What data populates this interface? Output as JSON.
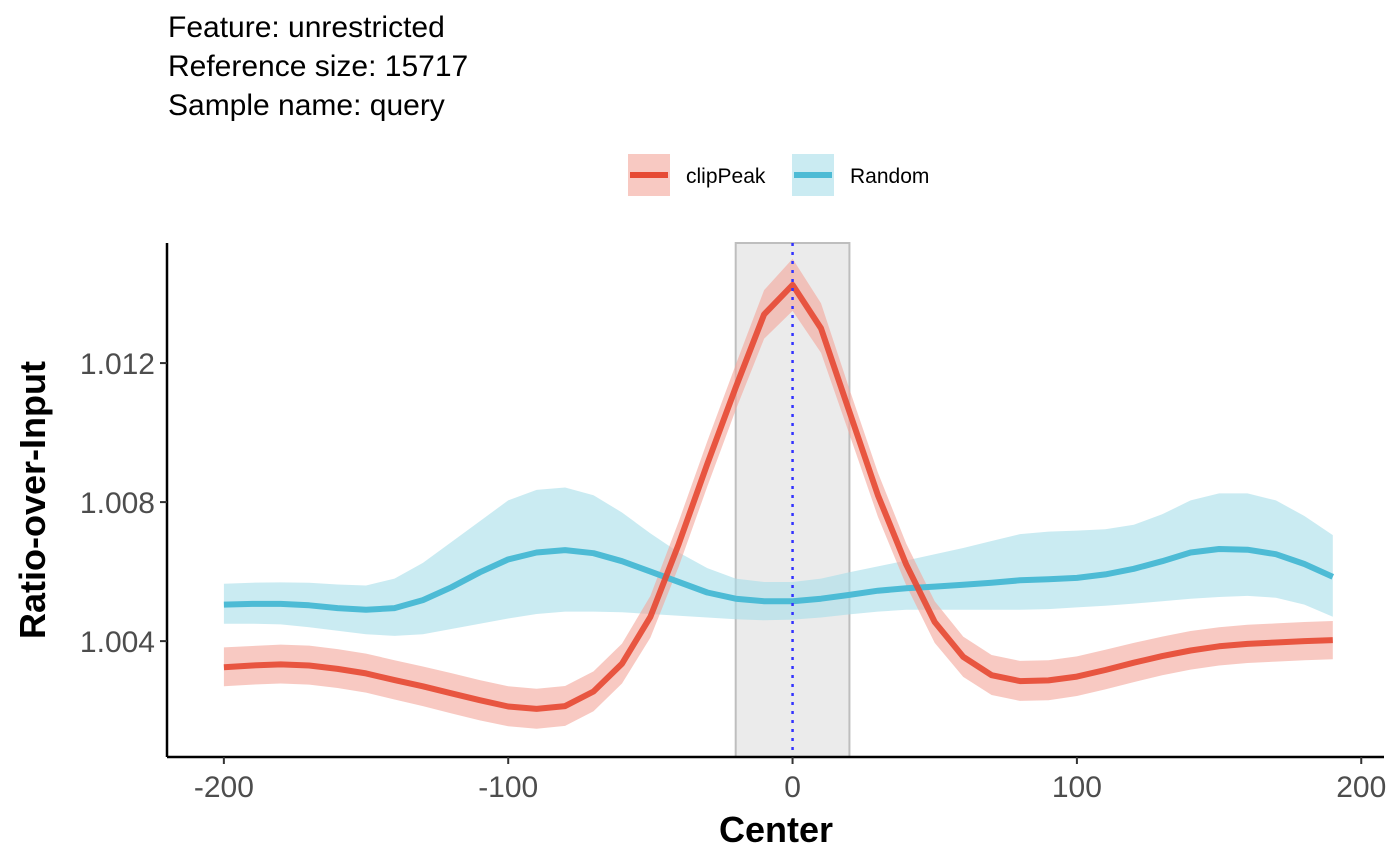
{
  "title_lines": [
    "Feature: unrestricted",
    "Reference size: 15717",
    "Sample name: query"
  ],
  "chart_data": {
    "type": "line",
    "xlabel": "Center",
    "ylabel": "Ratio-over-Input",
    "xlim": [
      -220,
      208
    ],
    "ylim": [
      1.000666,
      1.015455
    ],
    "x_ticks": [
      -200,
      -100,
      0,
      100,
      200
    ],
    "x_tick_labels": [
      "-200",
      "-100",
      "0",
      "100",
      "200"
    ],
    "y_ticks": [
      1.004,
      1.008,
      1.012
    ],
    "y_tick_labels": [
      "1.004",
      "1.008",
      "1.012"
    ],
    "grid": false,
    "legend_position": "top",
    "highlight_region": [
      -20,
      20
    ],
    "reference_line_x": 0,
    "colors": {
      "clipPeak_line": "#E64B35",
      "clipPeak_band": "#F4A59A",
      "Random_line": "#4DBBD5",
      "Random_band": "#A6DDEA",
      "highlight_fill": "#EBEBEB",
      "highlight_stroke": "#BEBEBE",
      "reference_line": "#3333FF",
      "axis": "#000000"
    },
    "x": [
      -200,
      -190,
      -180,
      -170,
      -160,
      -150,
      -140,
      -130,
      -120,
      -110,
      -100,
      -90,
      -80,
      -70,
      -60,
      -50,
      -40,
      -30,
      -20,
      -10,
      0,
      10,
      20,
      30,
      40,
      50,
      60,
      70,
      80,
      90,
      100,
      110,
      120,
      130,
      140,
      150,
      160,
      170,
      180,
      190
    ],
    "series": [
      {
        "name": "clipPeak",
        "values": [
          1.00325,
          1.0033,
          1.00333,
          1.0033,
          1.0032,
          1.00307,
          1.00288,
          1.0027,
          1.0025,
          1.0023,
          1.00212,
          1.00205,
          1.00213,
          1.00255,
          1.00335,
          1.0047,
          1.0068,
          1.0091,
          1.0113,
          1.0134,
          1.01425,
          1.013,
          1.0106,
          1.0082,
          1.0062,
          1.00455,
          1.00355,
          1.00302,
          1.00285,
          1.00287,
          1.00298,
          1.00317,
          1.00338,
          1.00357,
          1.00373,
          1.00385,
          1.00392,
          1.00396,
          1.004,
          1.00403
        ],
        "lower": [
          1.0027,
          1.00275,
          1.00278,
          1.00275,
          1.00265,
          1.00252,
          1.00232,
          1.00213,
          1.00192,
          1.00172,
          1.00155,
          1.00148,
          1.00156,
          1.00198,
          1.00278,
          1.0041,
          1.00615,
          1.00845,
          1.01065,
          1.0127,
          1.0135,
          1.0123,
          1.00995,
          1.00758,
          1.0056,
          1.00395,
          1.00297,
          1.00245,
          1.00228,
          1.0023,
          1.00242,
          1.00261,
          1.00282,
          1.00302,
          1.00318,
          1.0033,
          1.00337,
          1.00341,
          1.00345,
          1.00348
        ],
        "upper": [
          1.00382,
          1.00386,
          1.0039,
          1.00387,
          1.00377,
          1.00364,
          1.00345,
          1.00327,
          1.00308,
          1.00288,
          1.0027,
          1.00263,
          1.00271,
          1.00313,
          1.00393,
          1.0053,
          1.00745,
          1.00975,
          1.01195,
          1.0141,
          1.015,
          1.01372,
          1.01125,
          1.00885,
          1.0068,
          1.00515,
          1.00413,
          1.0036,
          1.00343,
          1.00345,
          1.00356,
          1.00375,
          1.00395,
          1.00413,
          1.00429,
          1.0044,
          1.00447,
          1.00451,
          1.00455,
          1.00458
        ]
      },
      {
        "name": "Random",
        "values": [
          1.00505,
          1.00507,
          1.00507,
          1.00503,
          1.00495,
          1.0049,
          1.00495,
          1.00518,
          1.00555,
          1.00598,
          1.00635,
          1.00655,
          1.00662,
          1.00653,
          1.0063,
          1.006,
          1.0057,
          1.0054,
          1.00522,
          1.00515,
          1.00515,
          1.00522,
          1.00533,
          1.00545,
          1.00552,
          1.00557,
          1.00562,
          1.00568,
          1.00575,
          1.00578,
          1.00582,
          1.00592,
          1.00608,
          1.0063,
          1.00655,
          1.00665,
          1.00663,
          1.0065,
          1.00622,
          1.00585
        ],
        "lower": [
          1.0045,
          1.0045,
          1.00448,
          1.0044,
          1.0043,
          1.0042,
          1.00415,
          1.0042,
          1.00435,
          1.0045,
          1.00465,
          1.00478,
          1.00485,
          1.00485,
          1.00483,
          1.00478,
          1.00473,
          1.00468,
          1.00463,
          1.0046,
          1.00462,
          1.00468,
          1.00477,
          1.00485,
          1.0049,
          1.0049,
          1.0049,
          1.0049,
          1.0049,
          1.00492,
          1.00497,
          1.00502,
          1.00508,
          1.00515,
          1.00522,
          1.00527,
          1.0053,
          1.00525,
          1.00505,
          1.0047
        ],
        "upper": [
          1.00565,
          1.00568,
          1.00569,
          1.00568,
          1.00563,
          1.0056,
          1.0058,
          1.00625,
          1.00685,
          1.00745,
          1.00805,
          1.00835,
          1.00842,
          1.0082,
          1.0077,
          1.0071,
          1.00655,
          1.0061,
          1.0058,
          1.0057,
          1.0057,
          1.0058,
          1.00598,
          1.00615,
          1.00632,
          1.0065,
          1.00668,
          1.00688,
          1.00708,
          1.00715,
          1.00718,
          1.00722,
          1.00735,
          1.00765,
          1.00805,
          1.00825,
          1.00825,
          1.00805,
          1.0076,
          1.00705
        ]
      }
    ]
  }
}
